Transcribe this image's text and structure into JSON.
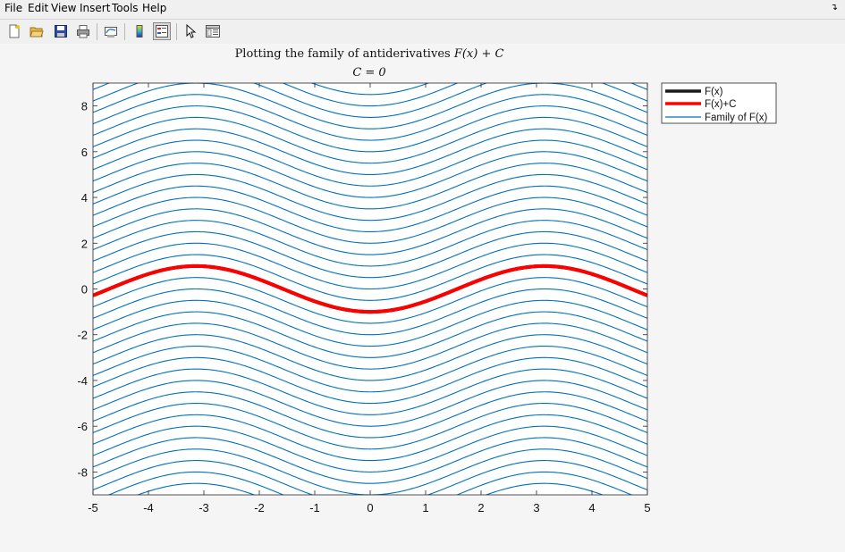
{
  "menu": [
    "File",
    "Edit",
    "View",
    "Insert",
    "Tools",
    "Help"
  ],
  "dock_icon": "undock-arrow-icon",
  "toolbar": [
    {
      "name": "new-figure-button",
      "icon": "new-file-icon"
    },
    {
      "name": "open-file-button",
      "icon": "folder-open-icon"
    },
    {
      "name": "save-figure-button",
      "icon": "floppy-disk-icon"
    },
    {
      "name": "print-figure-button",
      "icon": "printer-icon"
    },
    {
      "name": "link-plot-button",
      "icon": "link-plot-icon"
    },
    {
      "name": "insert-colorbar-button",
      "icon": "colorbar-icon"
    },
    {
      "name": "insert-legend-button",
      "icon": "legend-icon",
      "pressed": true
    },
    {
      "name": "edit-plot-button",
      "icon": "pointer-arrow-icon"
    },
    {
      "name": "show-plot-tools-button",
      "icon": "plot-tools-icon"
    }
  ],
  "chart_data": {
    "type": "line",
    "title_line1_text": "Plotting the family of antiderivatives ",
    "title_line1_math": "F(x) + C",
    "title_line2": "C = 0",
    "xlim": [
      -5,
      5
    ],
    "ylim": [
      -9,
      9
    ],
    "xticks": [
      "-5",
      "-4",
      "-3",
      "-2",
      "-1",
      "0",
      "1",
      "2",
      "3",
      "4",
      "5"
    ],
    "yticks": [
      "-8",
      "-6",
      "-4",
      "-2",
      "0",
      "2",
      "4",
      "6",
      "8"
    ],
    "grid": false,
    "legend_position": "outside-top-right",
    "function": "F(x) = -cos(x)",
    "C": 0,
    "family_offsets": {
      "start": -9.5,
      "stop": 9.5,
      "step": 0.5
    },
    "series": [
      {
        "name": "F(x)",
        "color": "#1a1a1a",
        "style": "thick"
      },
      {
        "name": "F(x)+C",
        "color": "#ff0000",
        "style": "thick"
      },
      {
        "name": "Family of F(x)",
        "color": "#0072bd",
        "style": "thin"
      }
    ]
  }
}
